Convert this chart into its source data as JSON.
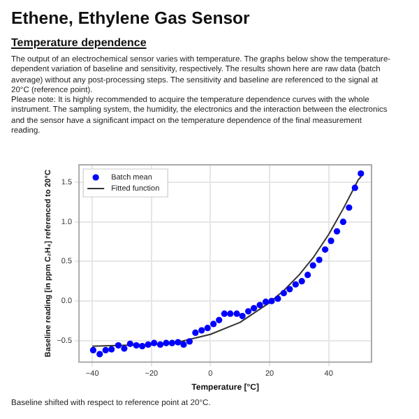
{
  "chart_data": {
    "type": "scatter",
    "title": "Ethene, Ethylene Gas Sensor",
    "subtitle": "Temperature dependence",
    "annotations": [
      "The output of an electrochemical sensor varies with temperature. The graphs below show the temperature-dependent variation of baseline and sensitivity, respectively. The results shown here are raw data (batch average) without any post-processing steps. The sensitivity and baseline are referenced to the signal at 20°C (reference point).",
      "Please note:  It is highly recommended to acquire the temperature dependence curves with the whole instrument. The sampling system, the humidity, the electronics and the interaction between the electronics and the sensor have a significant impact on the temperature dependence of the final measurement reading.",
      "Baseline shifted with respect to reference point at 20°C."
    ],
    "xlabel": "Temperature [°C]",
    "ylabel": "Baseline reading [in ppm C₂H₄] referenced to 20°C",
    "series": [
      {
        "name": "Batch mean",
        "type": "scatter",
        "color": "#0000ff",
        "marker": "circle",
        "x": [
          -39.7,
          -37.5,
          -35.5,
          -33.5,
          -31.2,
          -29.2,
          -27.2,
          -25.1,
          -23.1,
          -21.1,
          -19.1,
          -17.0,
          -15.0,
          -13.0,
          -11.0,
          -9.1,
          -7.1,
          -5.1,
          -3.0,
          -1.0,
          1.0,
          2.9,
          4.7,
          6.7,
          8.9,
          10.8,
          12.8,
          14.7,
          16.7,
          18.7,
          20.7,
          22.8,
          24.8,
          26.8,
          28.8,
          30.9,
          32.9,
          34.7,
          36.8,
          38.8,
          40.8,
          42.8,
          44.9,
          46.9,
          48.9,
          50.9
        ],
        "values": [
          -0.62,
          -0.67,
          -0.62,
          -0.61,
          -0.56,
          -0.6,
          -0.54,
          -0.56,
          -0.57,
          -0.55,
          -0.53,
          -0.55,
          -0.53,
          -0.53,
          -0.52,
          -0.55,
          -0.51,
          -0.4,
          -0.37,
          -0.34,
          -0.29,
          -0.24,
          -0.16,
          -0.16,
          -0.16,
          -0.19,
          -0.13,
          -0.09,
          -0.05,
          -0.01,
          0.0,
          0.03,
          0.1,
          0.15,
          0.21,
          0.25,
          0.33,
          0.45,
          0.52,
          0.65,
          0.76,
          0.88,
          1.0,
          1.18,
          1.43,
          1.61
        ]
      },
      {
        "name": "Fitted function",
        "type": "line",
        "color": "#333333",
        "marker": "none",
        "line_style": "solid",
        "x": [
          -40,
          -30,
          -20,
          -10,
          0,
          10,
          20,
          25,
          30,
          35,
          40,
          45,
          50,
          51
        ],
        "values": [
          -0.57,
          -0.56,
          -0.55,
          -0.51,
          -0.42,
          -0.27,
          -0.02,
          0.14,
          0.33,
          0.56,
          0.84,
          1.17,
          1.53,
          1.57
        ]
      }
    ],
    "xlim": [
      -44.5,
      54.5
    ],
    "xticks": [
      {
        "value": -40,
        "label": "−40"
      },
      {
        "value": -20,
        "label": "−20"
      },
      0,
      20,
      40
    ],
    "ylim": [
      -0.77,
      1.72
    ],
    "yticks": [
      {
        "value": -0.5,
        "label": "−0.5"
      },
      {
        "value": 0,
        "label": "0.0"
      },
      0.5,
      {
        "value": 1,
        "label": "1.0"
      },
      1.5
    ],
    "grid": true,
    "legend": "top left"
  }
}
